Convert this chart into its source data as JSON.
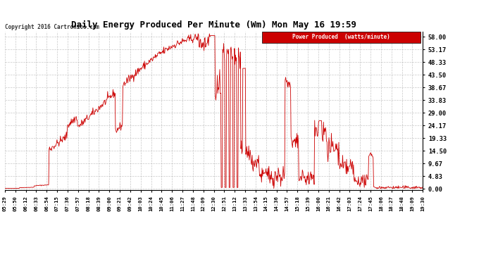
{
  "title": "Daily Energy Produced Per Minute (Wm) Mon May 16 19:59",
  "copyright": "Copyright 2016 Cartronics.com",
  "legend_label": "Power Produced  (watts/minute)",
  "legend_bg": "#cc0000",
  "legend_fg": "#ffffff",
  "line_color": "#cc0000",
  "bg_color": "#ffffff",
  "grid_color": "#b0b0b0",
  "title_color": "#000000",
  "y_ticks": [
    0.0,
    4.83,
    9.67,
    14.5,
    19.33,
    24.17,
    29.0,
    33.83,
    38.67,
    43.5,
    48.33,
    53.17,
    58.0
  ],
  "y_max": 60.0,
  "x_labels": [
    "05:29",
    "05:50",
    "06:12",
    "06:33",
    "06:54",
    "07:15",
    "07:36",
    "07:57",
    "08:18",
    "08:39",
    "09:00",
    "09:21",
    "09:42",
    "10:03",
    "10:24",
    "10:45",
    "11:06",
    "11:27",
    "11:48",
    "12:09",
    "12:30",
    "12:51",
    "13:12",
    "13:33",
    "13:54",
    "14:15",
    "14:36",
    "14:57",
    "15:18",
    "15:39",
    "16:00",
    "16:21",
    "16:42",
    "17:03",
    "17:24",
    "17:45",
    "18:06",
    "18:27",
    "18:48",
    "19:09",
    "19:30"
  ],
  "figsize": [
    6.9,
    3.75
  ],
  "dpi": 100
}
